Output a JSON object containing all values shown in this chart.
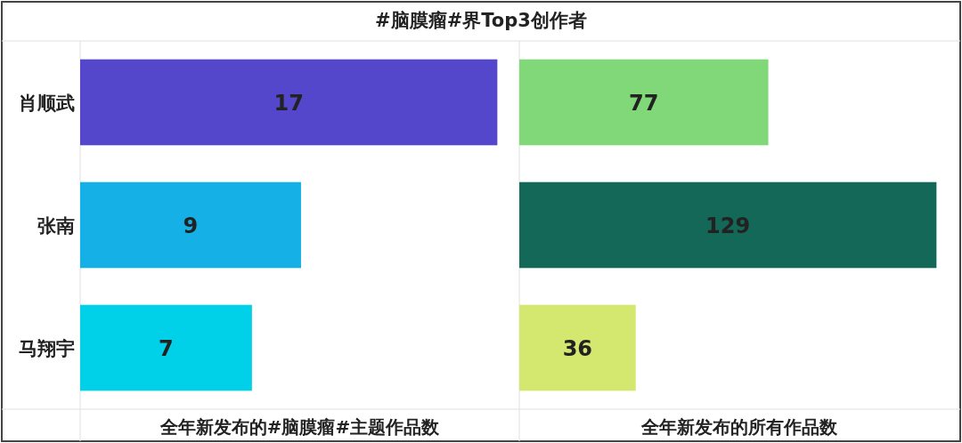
{
  "chart_data": [
    {
      "type": "bar",
      "orientation": "horizontal",
      "title": "#脑膜瘤#界Top3创作者",
      "categories": [
        "肖顺武",
        "张南",
        "马翔宇"
      ],
      "values": [
        17,
        9,
        7
      ],
      "colors": [
        "#5447cc",
        "#15b0e6",
        "#00d0e8"
      ],
      "xlabel": "全年新发布的#脑膜瘤#主题作品数",
      "data_labels": true
    },
    {
      "type": "bar",
      "orientation": "horizontal",
      "categories": [
        null,
        null,
        null
      ],
      "values": [
        77,
        129,
        36
      ],
      "colors": [
        "#80d878",
        "#146858",
        "#d4e870"
      ],
      "xlabel": "全年新发布的所有作品数",
      "data_labels": true
    }
  ]
}
